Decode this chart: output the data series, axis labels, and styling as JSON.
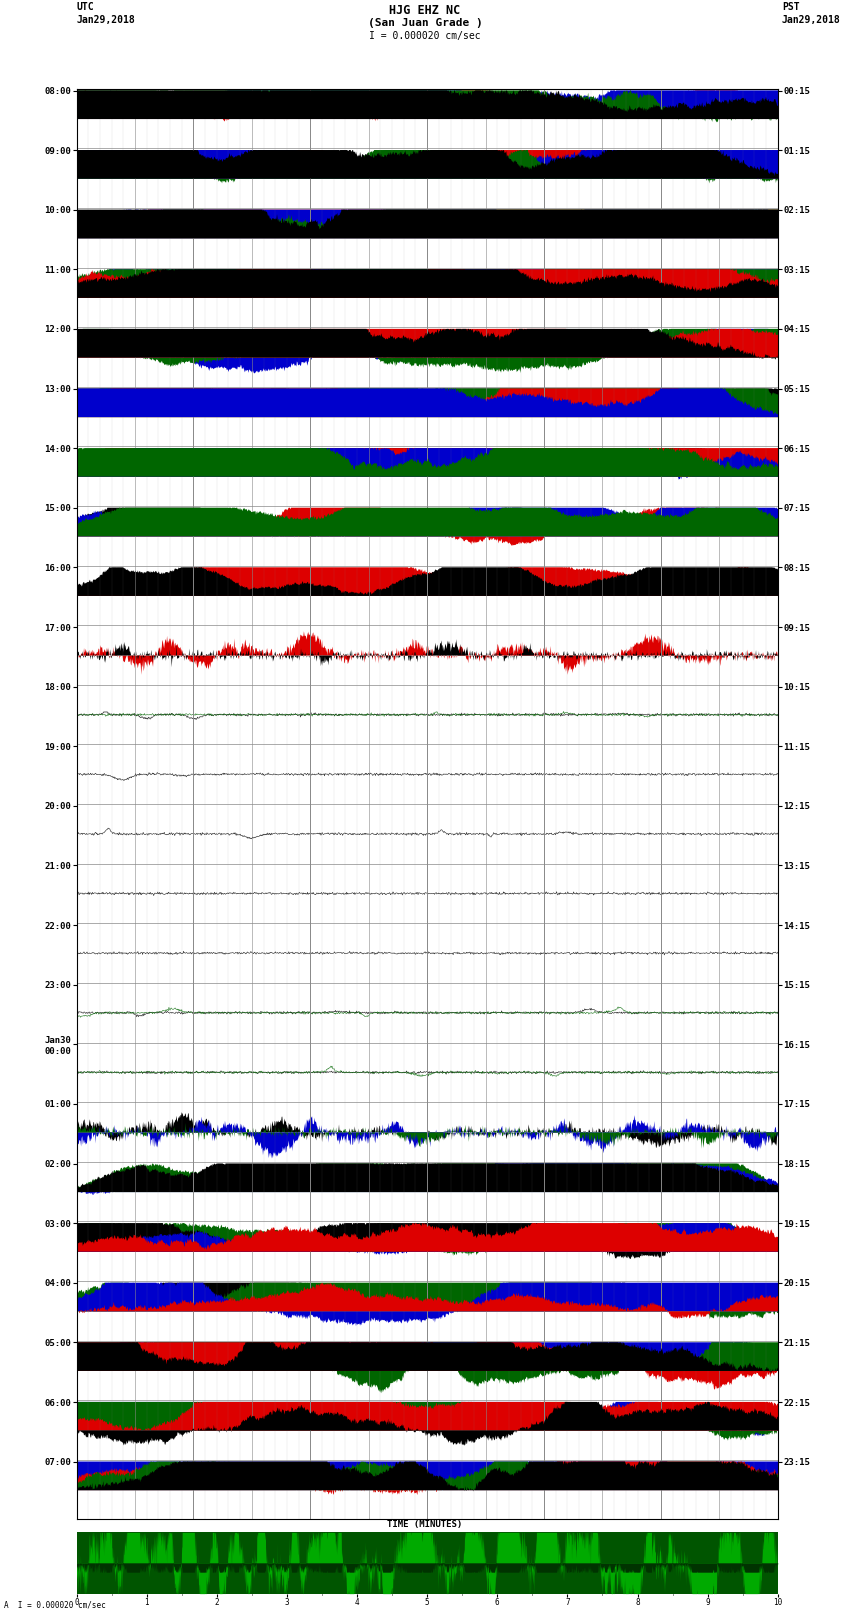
{
  "title_line1": "HJG EHZ NC",
  "title_line2": "(San Juan Grade )",
  "scale_text": "I = 0.000020 cm/sec",
  "left_label_top": "UTC",
  "left_label_date": "Jan29,2018",
  "right_label_top": "PST",
  "right_label_date": "Jan29,2018",
  "bottom_label": "TIME (MINUTES)",
  "bottom_scale": "A  I = 0.000020 cm/sec",
  "utc_times": [
    "08:00",
    "09:00",
    "10:00",
    "11:00",
    "12:00",
    "13:00",
    "14:00",
    "15:00",
    "16:00",
    "17:00",
    "18:00",
    "19:00",
    "20:00",
    "21:00",
    "22:00",
    "23:00",
    "Jan30\n00:00",
    "01:00",
    "02:00",
    "03:00",
    "04:00",
    "05:00",
    "06:00",
    "07:00"
  ],
  "pst_times": [
    "00:15",
    "01:15",
    "02:15",
    "03:15",
    "04:15",
    "05:15",
    "06:15",
    "07:15",
    "08:15",
    "09:15",
    "10:15",
    "11:15",
    "12:15",
    "13:15",
    "14:15",
    "15:15",
    "16:15",
    "17:15",
    "18:15",
    "19:15",
    "20:15",
    "21:15",
    "22:15",
    "23:15"
  ],
  "bg_color": "#ffffff",
  "grid_color": "#888888",
  "num_rows": 24,
  "num_cols": 60,
  "fig_width": 8.5,
  "fig_height": 16.13,
  "row_configs": [
    {
      "intensity": 0.95,
      "colors": [
        "red",
        "blue",
        "green",
        "black"
      ],
      "fill": true
    },
    {
      "intensity": 0.95,
      "colors": [
        "red",
        "blue",
        "green",
        "black"
      ],
      "fill": true
    },
    {
      "intensity": 0.92,
      "colors": [
        "red",
        "blue",
        "green",
        "black"
      ],
      "fill": true
    },
    {
      "intensity": 0.9,
      "colors": [
        "blue",
        "green",
        "red",
        "black"
      ],
      "fill": true
    },
    {
      "intensity": 0.88,
      "colors": [
        "blue",
        "green",
        "red",
        "black"
      ],
      "fill": true
    },
    {
      "intensity": 0.85,
      "colors": [
        "black",
        "green",
        "red",
        "blue"
      ],
      "fill": true
    },
    {
      "intensity": 0.8,
      "colors": [
        "black",
        "red",
        "blue",
        "green"
      ],
      "fill": true
    },
    {
      "intensity": 0.72,
      "colors": [
        "black",
        "red",
        "blue",
        "green"
      ],
      "fill": true
    },
    {
      "intensity": 0.55,
      "colors": [
        "red",
        "black"
      ],
      "fill": true
    },
    {
      "intensity": 0.42,
      "colors": [
        "red",
        "black"
      ],
      "fill": false
    },
    {
      "intensity": 0.1,
      "colors": [
        "black",
        "green"
      ],
      "fill": false
    },
    {
      "intensity": 0.15,
      "colors": [
        "black"
      ],
      "fill": false
    },
    {
      "intensity": 0.12,
      "colors": [
        "black"
      ],
      "fill": false
    },
    {
      "intensity": 0.08,
      "colors": [
        "black"
      ],
      "fill": false
    },
    {
      "intensity": 0.08,
      "colors": [
        "black"
      ],
      "fill": false
    },
    {
      "intensity": 0.1,
      "colors": [
        "black",
        "green"
      ],
      "fill": false
    },
    {
      "intensity": 0.15,
      "colors": [
        "black",
        "green"
      ],
      "fill": false
    },
    {
      "intensity": 0.4,
      "colors": [
        "black",
        "blue",
        "green"
      ],
      "fill": false
    },
    {
      "intensity": 0.6,
      "colors": [
        "green",
        "blue",
        "black"
      ],
      "fill": true
    },
    {
      "intensity": 0.75,
      "colors": [
        "green",
        "black",
        "blue",
        "red"
      ],
      "fill": true
    },
    {
      "intensity": 0.82,
      "colors": [
        "black",
        "green",
        "blue",
        "red"
      ],
      "fill": true
    },
    {
      "intensity": 0.9,
      "colors": [
        "blue",
        "green",
        "red",
        "black"
      ],
      "fill": true
    },
    {
      "intensity": 0.92,
      "colors": [
        "blue",
        "green",
        "red",
        "black"
      ],
      "fill": true
    },
    {
      "intensity": 0.92,
      "colors": [
        "blue",
        "red",
        "green",
        "black"
      ],
      "fill": true
    }
  ],
  "color_map": {
    "red": "#dd0000",
    "blue": "#0000cc",
    "green": "#006600",
    "black": "#000000"
  }
}
